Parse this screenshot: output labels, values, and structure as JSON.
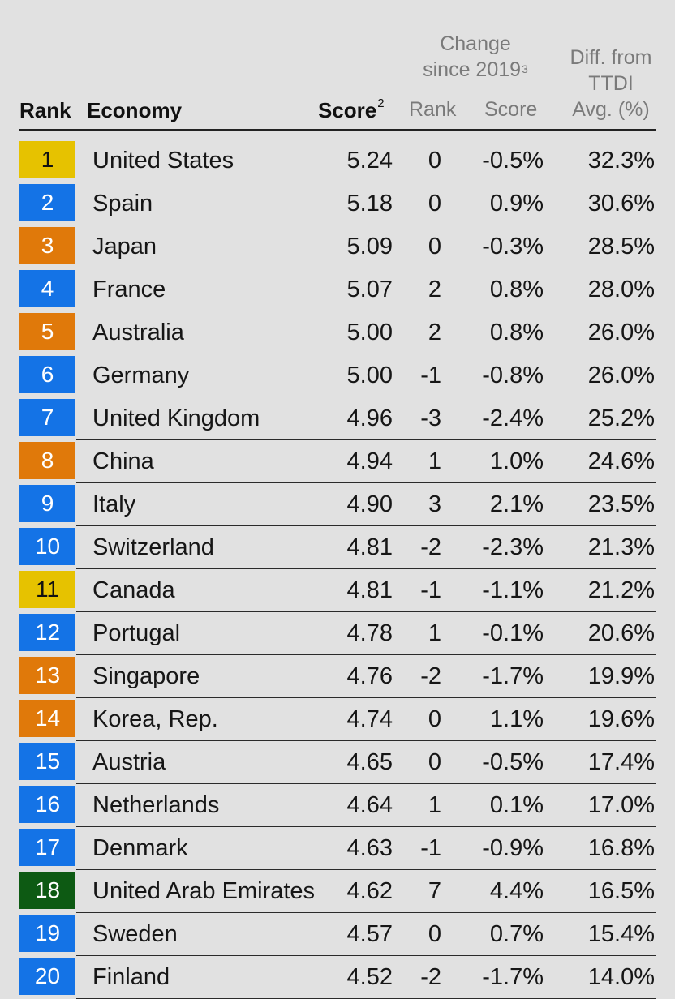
{
  "header": {
    "rank": "Rank",
    "economy": "Economy",
    "score": "Score",
    "score_sup": "2",
    "change_group_line1": "Change",
    "change_group_line2": "since 2019",
    "change_group_sup": "3",
    "change_rank": "Rank",
    "change_score": "Score",
    "diff_line1": "Diff. from",
    "diff_line2": "TTDI",
    "diff_line3": "Avg. (%)"
  },
  "colors": {
    "yellow": "#e6c200",
    "blue": "#1473e6",
    "orange": "#e0790a",
    "green": "#0d5a13",
    "background": "#e1e1e1"
  },
  "rows": [
    {
      "rank": "1",
      "color": "#e6c200",
      "rank_text_color": "#111111",
      "economy": "United States",
      "score": "5.24",
      "rank_change": "0",
      "score_change": "-0.5%",
      "diff": "32.3%"
    },
    {
      "rank": "2",
      "color": "#1473e6",
      "rank_text_color": "#ffffff",
      "economy": "Spain",
      "score": "5.18",
      "rank_change": "0",
      "score_change": "0.9%",
      "diff": "30.6%"
    },
    {
      "rank": "3",
      "color": "#e0790a",
      "rank_text_color": "#ffffff",
      "economy": "Japan",
      "score": "5.09",
      "rank_change": "0",
      "score_change": "-0.3%",
      "diff": "28.5%"
    },
    {
      "rank": "4",
      "color": "#1473e6",
      "rank_text_color": "#ffffff",
      "economy": "France",
      "score": "5.07",
      "rank_change": "2",
      "score_change": "0.8%",
      "diff": "28.0%"
    },
    {
      "rank": "5",
      "color": "#e0790a",
      "rank_text_color": "#ffffff",
      "economy": "Australia",
      "score": "5.00",
      "rank_change": "2",
      "score_change": "0.8%",
      "diff": "26.0%"
    },
    {
      "rank": "6",
      "color": "#1473e6",
      "rank_text_color": "#ffffff",
      "economy": "Germany",
      "score": "5.00",
      "rank_change": "-1",
      "score_change": "-0.8%",
      "diff": "26.0%"
    },
    {
      "rank": "7",
      "color": "#1473e6",
      "rank_text_color": "#ffffff",
      "economy": "United Kingdom",
      "score": "4.96",
      "rank_change": "-3",
      "score_change": "-2.4%",
      "diff": "25.2%"
    },
    {
      "rank": "8",
      "color": "#e0790a",
      "rank_text_color": "#ffffff",
      "economy": "China",
      "score": "4.94",
      "rank_change": "1",
      "score_change": "1.0%",
      "diff": "24.6%"
    },
    {
      "rank": "9",
      "color": "#1473e6",
      "rank_text_color": "#ffffff",
      "economy": "Italy",
      "score": "4.90",
      "rank_change": "3",
      "score_change": "2.1%",
      "diff": "23.5%"
    },
    {
      "rank": "10",
      "color": "#1473e6",
      "rank_text_color": "#ffffff",
      "economy": "Switzerland",
      "score": "4.81",
      "rank_change": "-2",
      "score_change": "-2.3%",
      "diff": "21.3%"
    },
    {
      "rank": "11",
      "color": "#e6c200",
      "rank_text_color": "#111111",
      "economy": "Canada",
      "score": "4.81",
      "rank_change": "-1",
      "score_change": "-1.1%",
      "diff": "21.2%"
    },
    {
      "rank": "12",
      "color": "#1473e6",
      "rank_text_color": "#ffffff",
      "economy": "Portugal",
      "score": "4.78",
      "rank_change": "1",
      "score_change": "-0.1%",
      "diff": "20.6%"
    },
    {
      "rank": "13",
      "color": "#e0790a",
      "rank_text_color": "#ffffff",
      "economy": "Singapore",
      "score": "4.76",
      "rank_change": "-2",
      "score_change": "-1.7%",
      "diff": "19.9%"
    },
    {
      "rank": "14",
      "color": "#e0790a",
      "rank_text_color": "#ffffff",
      "economy": "Korea, Rep.",
      "score": "4.74",
      "rank_change": "0",
      "score_change": "1.1%",
      "diff": "19.6%"
    },
    {
      "rank": "15",
      "color": "#1473e6",
      "rank_text_color": "#ffffff",
      "economy": "Austria",
      "score": "4.65",
      "rank_change": "0",
      "score_change": "-0.5%",
      "diff": "17.4%"
    },
    {
      "rank": "16",
      "color": "#1473e6",
      "rank_text_color": "#ffffff",
      "economy": "Netherlands",
      "score": "4.64",
      "rank_change": "1",
      "score_change": "0.1%",
      "diff": "17.0%"
    },
    {
      "rank": "17",
      "color": "#1473e6",
      "rank_text_color": "#ffffff",
      "economy": "Denmark",
      "score": "4.63",
      "rank_change": "-1",
      "score_change": "-0.9%",
      "diff": "16.8%"
    },
    {
      "rank": "18",
      "color": "#0d5a13",
      "rank_text_color": "#ffffff",
      "economy": "United Arab Emirates",
      "score": "4.62",
      "rank_change": "7",
      "score_change": "4.4%",
      "diff": "16.5%"
    },
    {
      "rank": "19",
      "color": "#1473e6",
      "rank_text_color": "#ffffff",
      "economy": "Sweden",
      "score": "4.57",
      "rank_change": "0",
      "score_change": "0.7%",
      "diff": "15.4%"
    },
    {
      "rank": "20",
      "color": "#1473e6",
      "rank_text_color": "#ffffff",
      "economy": "Finland",
      "score": "4.52",
      "rank_change": "-2",
      "score_change": "-1.7%",
      "diff": "14.0%"
    }
  ]
}
